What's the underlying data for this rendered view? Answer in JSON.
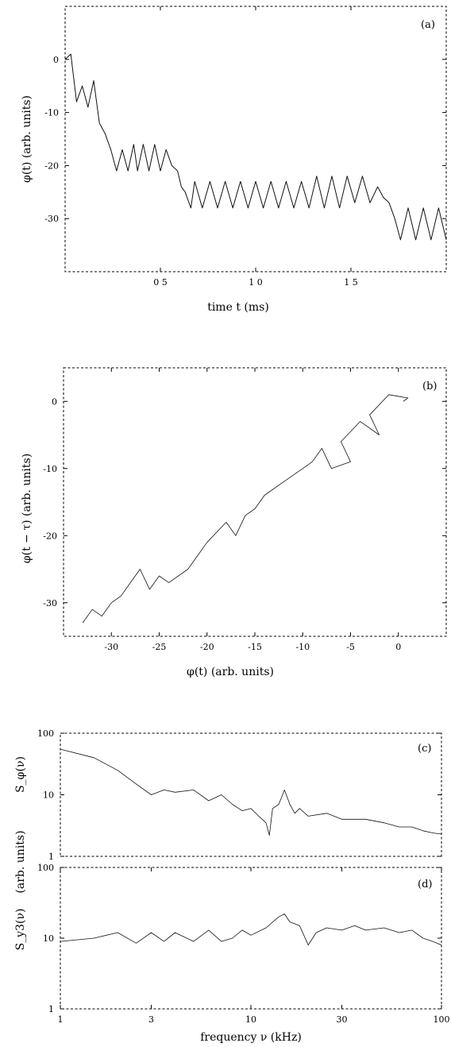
{
  "chart_data": [
    {
      "panel": "(a)",
      "type": "line",
      "xlabel": "time  t (ms)",
      "ylabel": "φ(t)   (arb. units)",
      "xlim": [
        0,
        2.0
      ],
      "ylim": [
        -40,
        10
      ],
      "xticks": [
        0.5,
        1.0,
        1.5
      ],
      "xtick_labels": [
        "0 5",
        "1 0",
        "1 5"
      ],
      "yticks": [
        0,
        -10,
        -20,
        -30
      ],
      "ytick_labels": [
        "0",
        "-10",
        "-20",
        "-30"
      ],
      "series": [
        {
          "x": [
            0,
            0.03,
            0.06,
            0.09,
            0.12,
            0.15,
            0.18,
            0.21,
            0.24,
            0.27,
            0.3,
            0.33,
            0.36,
            0.38,
            0.41,
            0.44,
            0.47,
            0.5,
            0.53,
            0.56,
            0.59,
            0.61,
            0.63,
            0.66,
            0.68,
            0.72,
            0.76,
            0.8,
            0.84,
            0.88,
            0.92,
            0.96,
            1.0,
            1.04,
            1.08,
            1.12,
            1.16,
            1.2,
            1.24,
            1.28,
            1.32,
            1.36,
            1.4,
            1.44,
            1.48,
            1.52,
            1.56,
            1.6,
            1.64,
            1.67,
            1.7,
            1.73,
            1.76,
            1.8,
            1.84,
            1.88,
            1.92,
            1.96,
            2.0
          ],
          "y": [
            0,
            1,
            -8,
            -5,
            -9,
            -4,
            -12,
            -14,
            -17,
            -21,
            -17,
            -21,
            -16,
            -21,
            -16,
            -21,
            -16,
            -21,
            -17,
            -20,
            -21,
            -24,
            -25,
            -28,
            -23,
            -28,
            -23,
            -28,
            -23,
            -28,
            -23,
            -28,
            -23,
            -28,
            -23,
            -28,
            -23,
            -28,
            -23,
            -28,
            -22,
            -28,
            -22,
            -28,
            -22,
            -27,
            -22,
            -27,
            -24,
            -26,
            -27,
            -30,
            -34,
            -28,
            -34,
            -28,
            -34,
            -28,
            -34
          ]
        }
      ]
    },
    {
      "panel": "(b)",
      "type": "line",
      "xlabel": "φ(t)     (arb. units)",
      "ylabel": "φ(t − τ)    (arb. units)",
      "xlim": [
        -35,
        5
      ],
      "ylim": [
        -35,
        5
      ],
      "xticks": [
        -30,
        -25,
        -20,
        -15,
        -10,
        -5,
        0
      ],
      "xtick_labels": [
        "-30",
        "-25",
        "-20",
        "-15",
        "-10",
        "-5",
        "0"
      ],
      "yticks": [
        0,
        -10,
        -20,
        -30
      ],
      "ytick_labels": [
        "0",
        "-10",
        "-20",
        "-30"
      ],
      "series": [
        {
          "x": [
            0.5,
            1,
            -1,
            -3,
            -2,
            -4,
            -6,
            -5,
            -7,
            -8,
            -9,
            -10,
            -12,
            -14,
            -15,
            -16,
            -17,
            -18,
            -20,
            -21,
            -22,
            -24,
            -25,
            -26,
            -27,
            -28,
            -29,
            -30,
            -31,
            -32,
            -33
          ],
          "y": [
            0,
            0.5,
            1,
            -2,
            -5,
            -3,
            -6,
            -9,
            -10,
            -7,
            -9,
            -10,
            -12,
            -14,
            -16,
            -17,
            -20,
            -18,
            -21,
            -23,
            -25,
            -27,
            -26,
            -28,
            -25,
            -27,
            -29,
            -30,
            -32,
            -31,
            -33
          ]
        }
      ]
    },
    {
      "panel": "(c)",
      "type": "line",
      "ylabel": "S_φ(ν)",
      "xscale": "log",
      "yscale": "log",
      "xlim": [
        1,
        100
      ],
      "ylim": [
        1,
        100
      ],
      "yticks": [
        100,
        10,
        1
      ],
      "ytick_labels": [
        "100",
        "10",
        "1"
      ],
      "series": [
        {
          "x": [
            1,
            1.5,
            2,
            2.5,
            3,
            3.5,
            4,
            5,
            6,
            7,
            8,
            9,
            10,
            11,
            12,
            12.5,
            13,
            14,
            15,
            16,
            17,
            18,
            20,
            25,
            30,
            40,
            50,
            60,
            70,
            80,
            90,
            100
          ],
          "y": [
            55,
            40,
            25,
            15,
            10,
            12,
            11,
            12,
            8,
            10,
            7,
            5.5,
            6,
            4.5,
            3.5,
            2.2,
            6,
            7,
            12,
            7,
            5,
            6,
            4.5,
            5,
            4,
            4,
            3.5,
            3,
            3,
            2.6,
            2.4,
            2.3
          ]
        }
      ]
    },
    {
      "panel": "(d)",
      "type": "line",
      "xlabel": "frequency  ν  (kHz)",
      "ylabel": "S_y3(ν)",
      "shared_ylabel": "(arb. units)",
      "xscale": "log",
      "yscale": "log",
      "xlim": [
        1,
        100
      ],
      "ylim": [
        1,
        100
      ],
      "xticks": [
        1,
        3,
        10,
        30,
        100
      ],
      "xtick_labels": [
        "1",
        "3",
        "10",
        "30",
        "100"
      ],
      "yticks": [
        100,
        10,
        1
      ],
      "ytick_labels": [
        "100",
        "10",
        "1"
      ],
      "series": [
        {
          "x": [
            1,
            1.5,
            2,
            2.5,
            3,
            3.5,
            4,
            5,
            6,
            7,
            8,
            9,
            10,
            12,
            14,
            15,
            16,
            18,
            20,
            22,
            25,
            30,
            35,
            40,
            50,
            60,
            70,
            80,
            90,
            100
          ],
          "y": [
            9,
            10,
            12,
            8.5,
            12,
            9,
            12,
            9,
            13,
            9,
            10,
            13,
            11,
            14,
            20,
            22,
            17,
            15,
            8,
            12,
            14,
            13,
            15,
            13,
            14,
            12,
            13,
            10,
            9,
            8
          ]
        }
      ]
    }
  ]
}
